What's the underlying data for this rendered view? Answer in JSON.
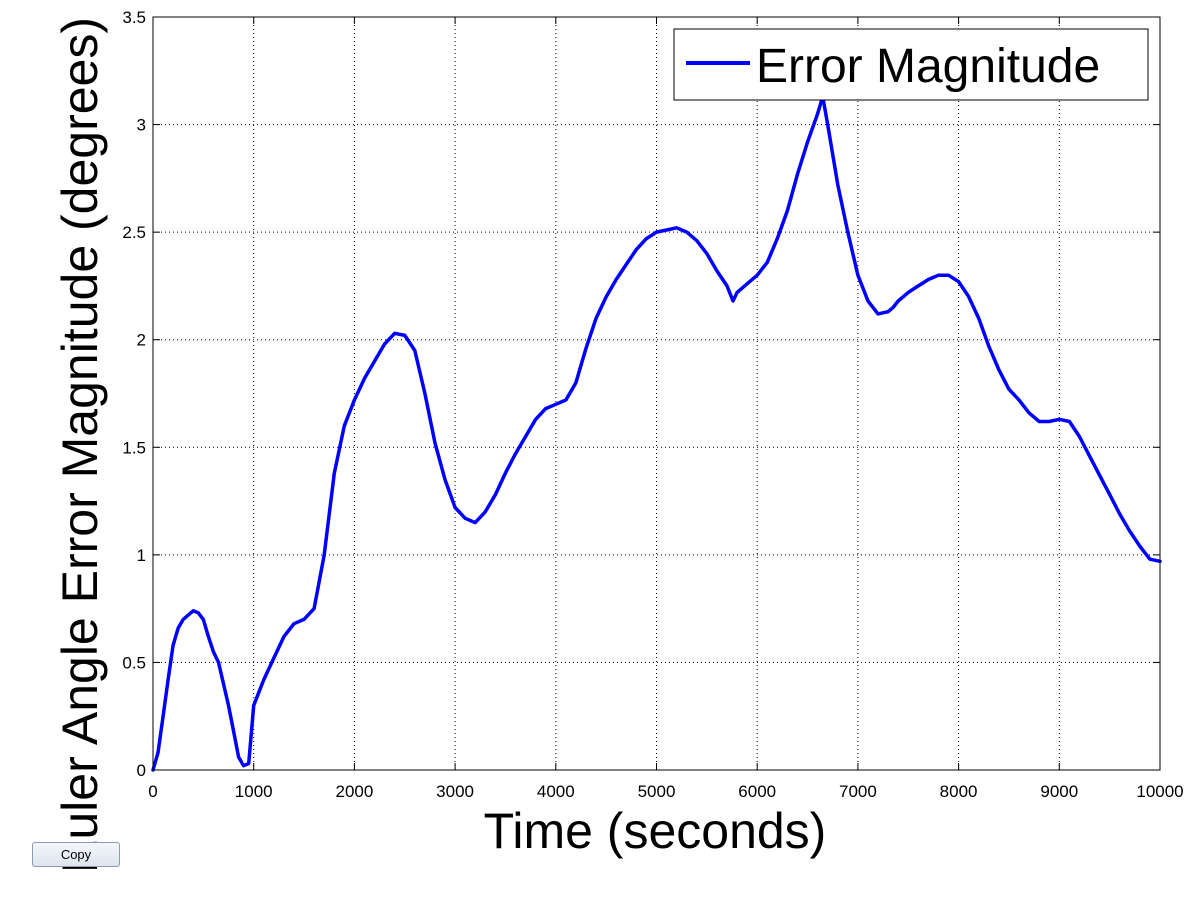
{
  "chart_data": {
    "type": "line",
    "xlabel": "Time (seconds)",
    "ylabel": "Euler Angle Error Magnitude (degrees)",
    "xlim": [
      0,
      10000
    ],
    "ylim": [
      0,
      3.5
    ],
    "x_ticks": [
      "0",
      "1000",
      "2000",
      "3000",
      "4000",
      "5000",
      "6000",
      "7000",
      "8000",
      "9000",
      "10000"
    ],
    "y_ticks": [
      "0",
      "0.5",
      "1",
      "1.5",
      "2",
      "2.5",
      "3",
      "3.5"
    ],
    "grid": true,
    "legend_position": "top-right",
    "series": [
      {
        "name": "Error Magnitude",
        "color": "#0000ff",
        "x": [
          0,
          50,
          100,
          150,
          200,
          250,
          300,
          350,
          400,
          450,
          500,
          550,
          600,
          650,
          700,
          750,
          800,
          850,
          900,
          950,
          1000,
          1100,
          1200,
          1300,
          1400,
          1500,
          1600,
          1700,
          1800,
          1900,
          2000,
          2100,
          2200,
          2300,
          2400,
          2500,
          2600,
          2700,
          2800,
          2900,
          3000,
          3100,
          3200,
          3300,
          3400,
          3500,
          3600,
          3700,
          3800,
          3900,
          4000,
          4100,
          4200,
          4300,
          4400,
          4500,
          4600,
          4700,
          4800,
          4900,
          5000,
          5100,
          5200,
          5300,
          5400,
          5500,
          5600,
          5700,
          5760,
          5800,
          5900,
          6000,
          6100,
          6200,
          6300,
          6400,
          6500,
          6600,
          6650,
          6700,
          6800,
          6900,
          7000,
          7100,
          7200,
          7300,
          7350,
          7400,
          7500,
          7600,
          7700,
          7800,
          7900,
          8000,
          8100,
          8200,
          8300,
          8400,
          8500,
          8600,
          8700,
          8800,
          8900,
          9000,
          9100,
          9200,
          9300,
          9400,
          9500,
          9600,
          9700,
          9800,
          9900,
          10000
        ],
        "y": [
          0,
          0.08,
          0.25,
          0.42,
          0.58,
          0.66,
          0.7,
          0.72,
          0.74,
          0.73,
          0.7,
          0.62,
          0.55,
          0.5,
          0.4,
          0.3,
          0.18,
          0.06,
          0.02,
          0.03,
          0.3,
          0.42,
          0.52,
          0.62,
          0.68,
          0.7,
          0.75,
          1.0,
          1.38,
          1.6,
          1.72,
          1.82,
          1.9,
          1.98,
          2.03,
          2.02,
          1.95,
          1.75,
          1.52,
          1.35,
          1.22,
          1.17,
          1.15,
          1.2,
          1.28,
          1.38,
          1.47,
          1.55,
          1.63,
          1.68,
          1.7,
          1.72,
          1.8,
          1.96,
          2.1,
          2.2,
          2.28,
          2.35,
          2.42,
          2.47,
          2.5,
          2.51,
          2.52,
          2.5,
          2.46,
          2.4,
          2.32,
          2.25,
          2.18,
          2.22,
          2.26,
          2.3,
          2.36,
          2.47,
          2.6,
          2.77,
          2.92,
          3.05,
          3.13,
          3.0,
          2.72,
          2.5,
          2.3,
          2.18,
          2.12,
          2.13,
          2.15,
          2.18,
          2.22,
          2.25,
          2.28,
          2.3,
          2.3,
          2.27,
          2.2,
          2.1,
          1.97,
          1.86,
          1.77,
          1.72,
          1.66,
          1.62,
          1.62,
          1.63,
          1.62,
          1.55,
          1.46,
          1.37,
          1.28,
          1.19,
          1.11,
          1.04,
          0.98,
          0.97
        ]
      }
    ]
  },
  "toolbar": {
    "copy_label": "Copy"
  }
}
